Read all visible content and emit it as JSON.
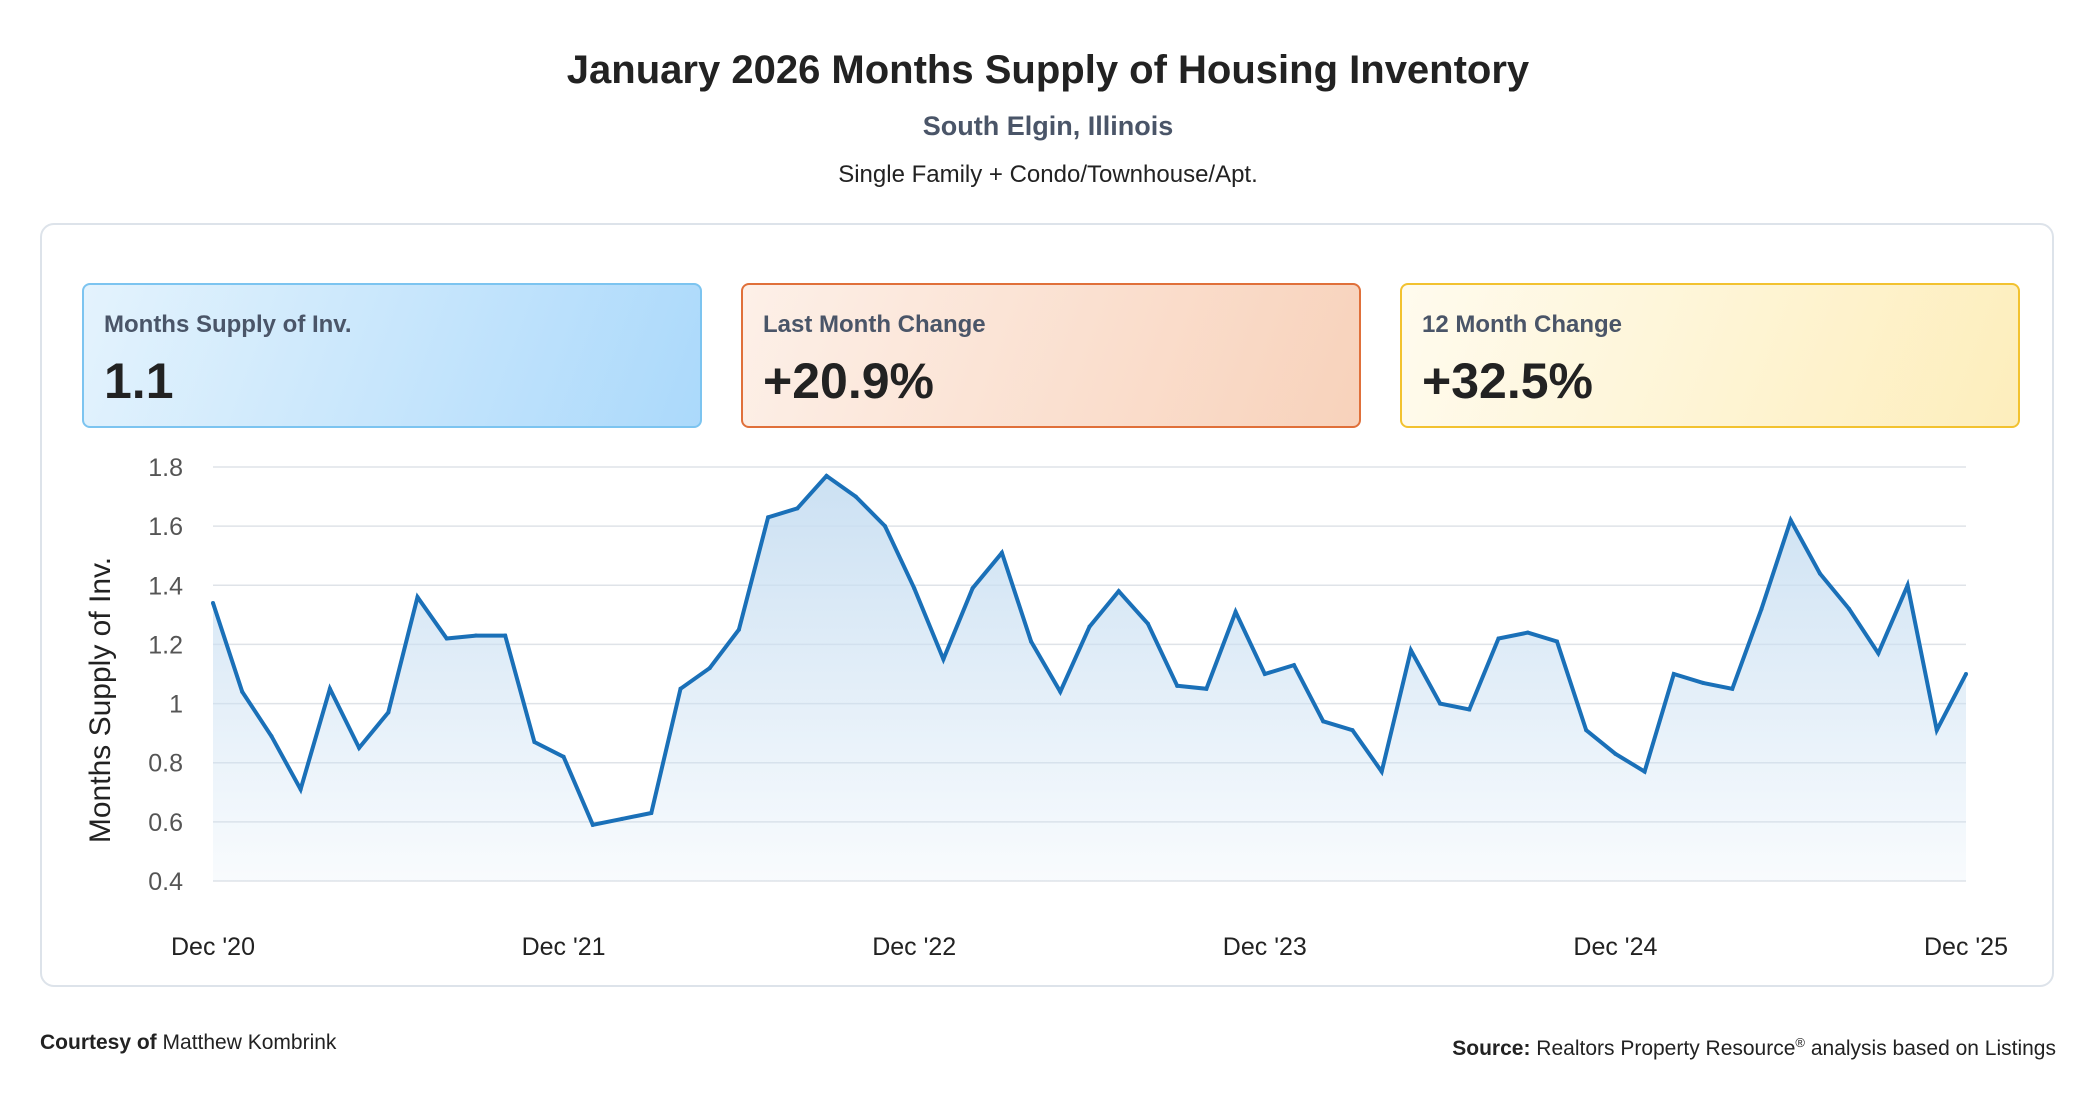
{
  "header": {
    "title": "January 2026 Months Supply of Housing Inventory",
    "subtitle": "South Elgin, Illinois",
    "property_types": "Single Family + Condo/Townhouse/Apt."
  },
  "cards": [
    {
      "label": "Months Supply of Inv.",
      "value": "1.1"
    },
    {
      "label": "Last Month Change",
      "value": "+20.9%"
    },
    {
      "label": "12 Month Change",
      "value": "+32.5%"
    }
  ],
  "footer": {
    "courtesy_label": "Courtesy of",
    "courtesy_name": "Matthew Kombrink",
    "source_label": "Source:",
    "source_text_a": "Realtors Property Resource",
    "source_reg": "®",
    "source_text_b": " analysis based on Listings"
  },
  "colors": {
    "line": "#1a70b8",
    "area_top": "#c9dff2",
    "grid": "#dfe3e8",
    "blue_card_border": "#7cc4f0",
    "orange_card_border": "#e0703a",
    "yellow_card_border": "#f2c230"
  },
  "chart_data": {
    "type": "area",
    "ylabel": "Months Supply of Inv.",
    "ylim": [
      0.4,
      1.8
    ],
    "yticks": [
      "1.8",
      "1.6",
      "1.4",
      "1.2",
      "1",
      "0.8",
      "0.6",
      "0.4"
    ],
    "ytick_values": [
      1.8,
      1.6,
      1.4,
      1.2,
      1.0,
      0.8,
      0.6,
      0.4
    ],
    "xtick_labels": [
      "Dec '20",
      "Dec '21",
      "Dec '22",
      "Dec '23",
      "Dec '24",
      "Dec '25"
    ],
    "x_start": "2020-12",
    "x_end": "2025-12",
    "grid": true,
    "series": [
      {
        "values": [
          1.34,
          1.04,
          0.89,
          0.71,
          1.05,
          0.85,
          0.97,
          1.36,
          1.22,
          1.23,
          1.23,
          0.87,
          0.82,
          0.59,
          0.61,
          0.63,
          1.05,
          1.12,
          1.25,
          1.63,
          1.66,
          1.77,
          1.7,
          1.6,
          1.39,
          1.15,
          1.39,
          1.51,
          1.21,
          1.04,
          1.26,
          1.38,
          1.27,
          1.06,
          1.05,
          1.31,
          1.1,
          1.13,
          0.94,
          0.91,
          0.77,
          1.18,
          1.0,
          0.98,
          1.22,
          1.24,
          1.21,
          0.91,
          0.83,
          0.77,
          1.1,
          1.07,
          1.05,
          1.32,
          1.62,
          1.44,
          1.32,
          1.17,
          1.4,
          0.91,
          1.1
        ]
      }
    ]
  }
}
